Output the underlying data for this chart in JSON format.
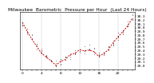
{
  "title": "Milwaukee  Barometric  Pressure per Hour  (Last 24 Hours)",
  "hours": [
    0,
    1,
    2,
    3,
    4,
    5,
    6,
    7,
    8,
    9,
    10,
    11,
    12,
    13,
    14,
    15,
    16,
    17,
    18,
    19,
    20,
    21,
    22,
    23
  ],
  "pressure_black": [
    30.05,
    29.9,
    29.72,
    29.55,
    29.38,
    29.25,
    29.15,
    29.08,
    29.12,
    29.2,
    29.28,
    29.35,
    29.4,
    29.42,
    29.45,
    29.38,
    29.25,
    29.32,
    29.48,
    29.62,
    29.78,
    29.92,
    30.08,
    30.22
  ],
  "pressure_red": [
    30.08,
    29.88,
    29.7,
    29.52,
    29.35,
    29.22,
    29.12,
    29.05,
    29.1,
    29.18,
    29.26,
    29.32,
    29.38,
    29.4,
    29.42,
    29.36,
    29.22,
    29.3,
    29.45,
    29.6,
    29.75,
    29.9,
    30.05,
    30.2
  ],
  "ylim": [
    28.9,
    30.4
  ],
  "ytick_vals": [
    29.0,
    29.1,
    29.2,
    29.3,
    29.4,
    29.5,
    29.6,
    29.7,
    29.8,
    29.9,
    30.0,
    30.1,
    30.2,
    30.3
  ],
  "dot_color": "#000000",
  "line_color": "#cc0000",
  "bg_color": "#ffffff",
  "plot_bg": "#ffffff",
  "grid_color": "#999999",
  "title_fontsize": 4.2,
  "tick_fontsize": 3.2,
  "noise_seed": 7,
  "noise_scale_black": 0.055,
  "noise_scale_red": 0.025
}
